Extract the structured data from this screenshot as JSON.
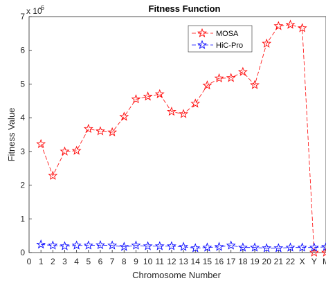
{
  "chart_data": {
    "type": "line",
    "title": "Fitness Function",
    "xlabel": "Chromosome Number",
    "ylabel": "Fitness Value",
    "y_exponent": "x 10-6",
    "y_exponent_base": "x 10",
    "y_exponent_power": "-6",
    "x_tick_labels": [
      "0",
      "1",
      "2",
      "3",
      "4",
      "5",
      "6",
      "7",
      "8",
      "9",
      "10",
      "11",
      "12",
      "13",
      "14",
      "15",
      "16",
      "17",
      "18",
      "19",
      "20",
      "21",
      "22",
      "X",
      "Y",
      "M"
    ],
    "y_tick_labels": [
      "0",
      "1",
      "2",
      "3",
      "4",
      "5",
      "6",
      "7"
    ],
    "ylim": [
      0,
      7
    ],
    "xlim": [
      0,
      25
    ],
    "grid": false,
    "legend_placement": "top-right",
    "x": [
      1,
      2,
      3,
      4,
      5,
      6,
      7,
      8,
      9,
      10,
      11,
      12,
      13,
      14,
      15,
      16,
      17,
      18,
      19,
      20,
      21,
      22,
      23,
      24,
      25
    ],
    "series": [
      {
        "name": "MOSA",
        "color": "#ff0000",
        "line_style": "dashed",
        "marker": "star",
        "values": [
          3.22,
          2.28,
          3.0,
          3.02,
          3.67,
          3.6,
          3.57,
          4.03,
          4.55,
          4.63,
          4.7,
          4.18,
          4.11,
          4.42,
          4.96,
          5.17,
          5.18,
          5.36,
          4.97,
          6.2,
          6.72,
          6.76,
          6.66,
          0.0,
          0.0
        ]
      },
      {
        "name": "HiC-Pro",
        "color": "#0000ff",
        "line_style": "dashed",
        "marker": "star",
        "values": [
          0.24,
          0.21,
          0.19,
          0.21,
          0.21,
          0.22,
          0.21,
          0.17,
          0.21,
          0.19,
          0.19,
          0.19,
          0.17,
          0.13,
          0.15,
          0.17,
          0.21,
          0.15,
          0.15,
          0.13,
          0.13,
          0.15,
          0.15,
          0.15,
          0.17
        ]
      }
    ]
  }
}
